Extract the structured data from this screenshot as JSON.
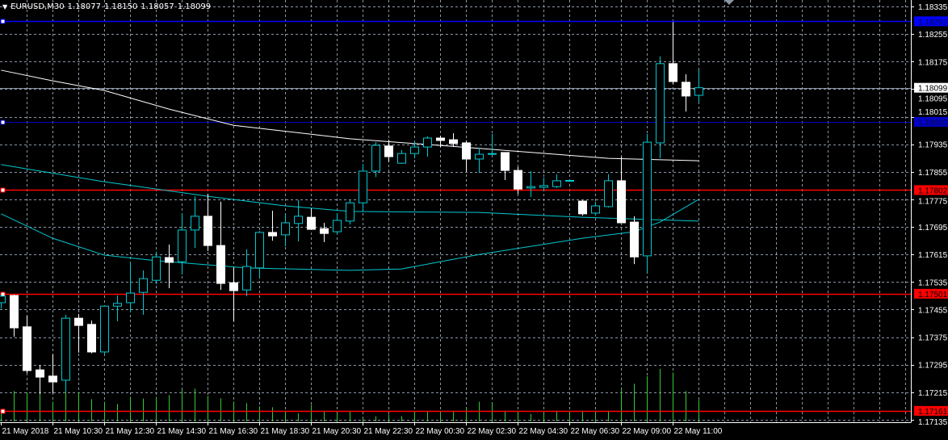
{
  "header": {
    "symbol": "EURUSD,M30",
    "open": "1.18077",
    "high": "1.18150",
    "low": "1.18057",
    "close": "1.18099",
    "menu_icon": "triangle-down-icon"
  },
  "colors": {
    "background": "#000000",
    "grid": "#8a96a6",
    "bull": "#00c8d0",
    "bear": "#ffffff",
    "volume": "#32cd32",
    "ma_slow": "#ffffff",
    "ma_fast": "#00c8d0",
    "blue_line": "#0000ff",
    "dark_blue_line": "#0000c0",
    "red_line": "#ff0000",
    "bid_line": "#8a96a6"
  },
  "chart_data": {
    "type": "candlestick",
    "title": "EURUSD,M30",
    "grid": true,
    "ylim": [
      1.17135,
      1.18335
    ],
    "y_ticks": [
      "1.18335",
      "1.18255",
      "1.18175",
      "1.18095",
      "1.18015",
      "1.17935",
      "1.17855",
      "1.17775",
      "1.17695",
      "1.17615",
      "1.17535",
      "1.17455",
      "1.17375",
      "1.17295",
      "1.17215",
      "1.17135"
    ],
    "x_labels": [
      {
        "index": 0,
        "text": "21 May 2018"
      },
      {
        "index": 4,
        "text": "21 May 10:30"
      },
      {
        "index": 8,
        "text": "21 May 12:30"
      },
      {
        "index": 12,
        "text": "21 May 14:30"
      },
      {
        "index": 16,
        "text": "21 May 16:30"
      },
      {
        "index": 20,
        "text": "21 May 18:30"
      },
      {
        "index": 24,
        "text": "21 May 20:30"
      },
      {
        "index": 28,
        "text": "21 May 22:30"
      },
      {
        "index": 32,
        "text": "22 May 00:30"
      },
      {
        "index": 36,
        "text": "22 May 02:30"
      },
      {
        "index": 40,
        "text": "22 May 04:30"
      },
      {
        "index": 44,
        "text": "22 May 06:30"
      },
      {
        "index": 48,
        "text": "22 May 09:00"
      },
      {
        "index": 52,
        "text": "22 May 11:00"
      }
    ],
    "ohlc": [
      [
        1.17475,
        1.17498,
        1.17458,
        1.17494
      ],
      [
        1.17496,
        1.17498,
        1.17376,
        1.17402
      ],
      [
        1.17405,
        1.17437,
        1.17271,
        1.17278
      ],
      [
        1.1728,
        1.17294,
        1.1721,
        1.17259
      ],
      [
        1.17262,
        1.17325,
        1.17212,
        1.17245
      ],
      [
        1.1725,
        1.1744,
        1.17217,
        1.1743
      ],
      [
        1.1743,
        1.17442,
        1.1733,
        1.17409
      ],
      [
        1.17412,
        1.17423,
        1.17328,
        1.17332
      ],
      [
        1.17332,
        1.17465,
        1.17323,
        1.17465
      ],
      [
        1.17465,
        1.17496,
        1.17421,
        1.17473
      ],
      [
        1.17475,
        1.17594,
        1.17447,
        1.17503
      ],
      [
        1.17505,
        1.17569,
        1.1744,
        1.17545
      ],
      [
        1.1754,
        1.17623,
        1.17529,
        1.17608
      ],
      [
        1.17606,
        1.17644,
        1.17517,
        1.17592
      ],
      [
        1.17594,
        1.17735,
        1.17557,
        1.17686
      ],
      [
        1.17686,
        1.17784,
        1.17634,
        1.17726
      ],
      [
        1.17726,
        1.17791,
        1.17625,
        1.17641
      ],
      [
        1.17641,
        1.17768,
        1.17512,
        1.17531
      ],
      [
        1.17533,
        1.17578,
        1.17421,
        1.1751
      ],
      [
        1.17512,
        1.1763,
        1.17494,
        1.1758
      ],
      [
        1.17576,
        1.17683,
        1.17548,
        1.17679
      ],
      [
        1.17679,
        1.17742,
        1.17655,
        1.17669
      ],
      [
        1.17672,
        1.17735,
        1.17639,
        1.17707
      ],
      [
        1.17705,
        1.17773,
        1.17653,
        1.17726
      ],
      [
        1.17723,
        1.17749,
        1.17688,
        1.17688
      ],
      [
        1.1769,
        1.17707,
        1.17651,
        1.17676
      ],
      [
        1.17681,
        1.17735,
        1.17674,
        1.17714
      ],
      [
        1.17712,
        1.17773,
        1.17702,
        1.17765
      ],
      [
        1.17765,
        1.17878,
        1.1774,
        1.17857
      ],
      [
        1.17857,
        1.17941,
        1.1784,
        1.17932
      ],
      [
        1.1793,
        1.17948,
        1.17883,
        1.17899
      ],
      [
        1.1788,
        1.17918,
        1.17878,
        1.17908
      ],
      [
        1.17908,
        1.17944,
        1.17894,
        1.17927
      ],
      [
        1.17927,
        1.17958,
        1.17899,
        1.17953
      ],
      [
        1.17953,
        1.1796,
        1.17927,
        1.17946
      ],
      [
        1.17948,
        1.17967,
        1.17927,
        1.17937
      ],
      [
        1.17939,
        1.17946,
        1.17855,
        1.17892
      ],
      [
        1.17892,
        1.17925,
        1.17852,
        1.17906
      ],
      [
        1.17906,
        1.17965,
        1.17904,
        1.17908
      ],
      [
        1.17911,
        1.17911,
        1.17831,
        1.17859
      ],
      [
        1.17859,
        1.17869,
        1.17791,
        1.17805
      ],
      [
        1.17808,
        1.17857,
        1.17782,
        1.17812
      ],
      [
        1.1781,
        1.17838,
        1.17798,
        1.17815
      ],
      [
        1.17812,
        1.17848,
        1.17808,
        1.17829
      ],
      [
        1.17829,
        1.17833,
        1.17826,
        1.1783
      ],
      [
        1.1777,
        1.17773,
        1.17728,
        1.17733
      ],
      [
        1.17735,
        1.17768,
        1.17728,
        1.17756
      ],
      [
        1.17754,
        1.17848,
        1.17751,
        1.17829
      ],
      [
        1.17829,
        1.17899,
        1.17707,
        1.17707
      ],
      [
        1.17709,
        1.17726,
        1.17587,
        1.17608
      ],
      [
        1.17611,
        1.17965,
        1.17562,
        1.17941
      ],
      [
        1.17939,
        1.1819,
        1.17894,
        1.18169
      ],
      [
        1.18169,
        1.1829,
        1.1811,
        1.18117
      ],
      [
        1.18115,
        1.18138,
        1.1803,
        1.18075
      ],
      [
        1.18077,
        1.1815,
        1.18057,
        1.18099
      ]
    ],
    "volume": [
      40,
      113,
      108,
      128,
      73,
      123,
      108,
      83,
      73,
      65,
      92,
      85,
      92,
      98,
      118,
      122,
      95,
      86,
      74,
      68,
      56,
      53,
      40,
      30,
      62,
      38,
      28,
      40,
      12,
      20,
      25,
      20,
      35,
      38,
      40,
      40,
      50,
      73,
      70,
      40,
      38,
      28,
      32,
      40,
      36,
      40,
      40,
      40,
      120,
      140,
      168,
      195,
      182,
      113,
      80
    ],
    "ma_slow": [
      [
        0,
        1.1815
      ],
      [
        4,
        1.18119
      ],
      [
        8,
        1.18091
      ],
      [
        13,
        1.18037
      ],
      [
        18,
        1.1799
      ],
      [
        27,
        1.17951
      ],
      [
        37,
        1.17923
      ],
      [
        47,
        1.17894
      ],
      [
        54,
        1.17887
      ]
    ],
    "ma_fast_1": [
      [
        0,
        1.17876
      ],
      [
        8,
        1.17826
      ],
      [
        16,
        1.17784
      ],
      [
        22,
        1.17756
      ],
      [
        27,
        1.1774
      ],
      [
        37,
        1.17737
      ],
      [
        45,
        1.17723
      ],
      [
        54,
        1.17712
      ]
    ],
    "ma_fast_2": [
      [
        0,
        1.17733
      ],
      [
        4,
        1.17662
      ],
      [
        8,
        1.17613
      ],
      [
        12,
        1.17597
      ],
      [
        19,
        1.17576
      ],
      [
        27,
        1.17569
      ],
      [
        31,
        1.17573
      ],
      [
        37,
        1.17615
      ],
      [
        45,
        1.17662
      ],
      [
        49,
        1.17681
      ],
      [
        51,
        1.17709
      ],
      [
        54,
        1.17775
      ]
    ],
    "hlines": [
      {
        "price": 1.18292,
        "label": "1.18292",
        "kind": "blue"
      },
      {
        "price": 1.18,
        "label": "1.18000",
        "kind": "dark_blue"
      },
      {
        "price": 1.17802,
        "label": "1.17802",
        "kind": "red"
      },
      {
        "price": 1.17501,
        "label": "1.17501",
        "kind": "red"
      },
      {
        "price": 1.17161,
        "label": "1.17161",
        "kind": "red"
      }
    ],
    "bid": {
      "price": 1.18099,
      "label": "1.18099"
    }
  }
}
